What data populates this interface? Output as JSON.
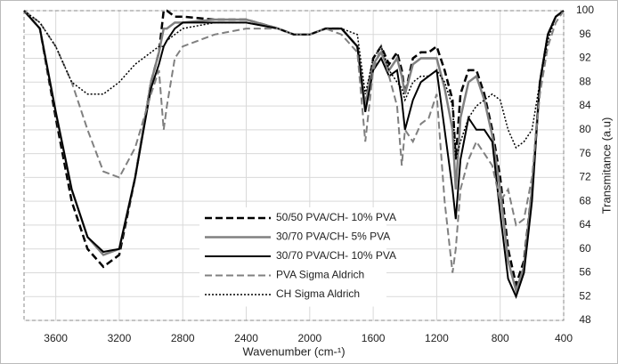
{
  "chart_data": {
    "type": "line",
    "x_label": "Wavenumber (cm-¹)",
    "y_label": "Transmitance (a.u)",
    "xlim": [
      3800,
      400
    ],
    "xticks": [
      3600,
      3200,
      2800,
      2400,
      2000,
      1600,
      1200,
      800,
      400
    ],
    "ylim": [
      48,
      100
    ],
    "yticks": [
      48,
      52,
      56,
      60,
      64,
      68,
      72,
      76,
      80,
      84,
      88,
      92,
      96,
      100
    ],
    "grid": true,
    "legend": "center-left",
    "x": [
      3800,
      3700,
      3600,
      3500,
      3400,
      3300,
      3200,
      3100,
      3000,
      2950,
      2920,
      2900,
      2850,
      2800,
      2600,
      2400,
      2200,
      2100,
      2000,
      1900,
      1800,
      1700,
      1650,
      1600,
      1550,
      1500,
      1450,
      1420,
      1400,
      1350,
      1300,
      1250,
      1200,
      1150,
      1100,
      1080,
      1050,
      1000,
      950,
      900,
      850,
      800,
      750,
      700,
      650,
      600,
      550,
      500,
      450,
      400
    ],
    "series": [
      {
        "name": "50/50 PVA/CH- 10% PVA",
        "color": "#000000",
        "dash": "dashed",
        "width": 2.5,
        "values": [
          100,
          97,
          82,
          68,
          60,
          57,
          59,
          72,
          88,
          93,
          100,
          100,
          99,
          99,
          98.5,
          98.5,
          97,
          96,
          96,
          97,
          97,
          94,
          84,
          92,
          94,
          91,
          93,
          90,
          86,
          92,
          93,
          93,
          94,
          90,
          85,
          75,
          86,
          90,
          90,
          86,
          80,
          72,
          60,
          54,
          58,
          70,
          88,
          96,
          99,
          100
        ]
      },
      {
        "name": "30/70 PVA/CH- 5% PVA",
        "color": "#808080",
        "dash": "solid",
        "width": 2.5,
        "values": [
          100,
          97,
          83,
          70,
          62,
          59,
          60,
          72,
          88,
          93,
          97,
          97,
          98,
          98,
          98.5,
          98.5,
          97,
          96,
          96,
          97,
          97,
          94,
          84,
          91,
          93,
          90,
          92,
          89,
          86,
          91,
          92,
          92,
          92,
          87,
          80,
          70,
          82,
          88,
          89,
          85,
          79,
          70,
          58,
          53,
          57,
          70,
          88,
          96,
          99,
          100
        ]
      },
      {
        "name": "30/70 PVA/CH- 10% PVA",
        "color": "#000000",
        "dash": "solid",
        "width": 2,
        "values": [
          100,
          97,
          83,
          70,
          62,
          59.5,
          60,
          72,
          87,
          91,
          94,
          95,
          97,
          98,
          98,
          98,
          97,
          96,
          96,
          97,
          97,
          94,
          83,
          90,
          92,
          89,
          90,
          85,
          80,
          85,
          88,
          89,
          90,
          80,
          70,
          65,
          75,
          82,
          80,
          80,
          78,
          66,
          55,
          52,
          56,
          68,
          88,
          96,
          99,
          100
        ]
      },
      {
        "name": "PVA  Sigma Aldrich",
        "color": "#808080",
        "dash": "dashed",
        "width": 2,
        "values": [
          100,
          98,
          94,
          88,
          80,
          73,
          72,
          77,
          86,
          90,
          80,
          84,
          92,
          94,
          96,
          97,
          97,
          96,
          96,
          97,
          96,
          93,
          78,
          90,
          94,
          89,
          84,
          74,
          80,
          78,
          81,
          82,
          86,
          68,
          56,
          60,
          70,
          75,
          78,
          76,
          74,
          68,
          70,
          64,
          65,
          72,
          86,
          94,
          98,
          100
        ]
      },
      {
        "name": "CH Sigma  Aldrich",
        "color": "#000000",
        "dash": "dotted",
        "width": 1.5,
        "values": [
          100,
          98,
          94,
          88,
          86,
          86,
          88,
          91,
          93,
          94,
          94,
          95,
          96,
          97,
          98,
          98,
          97,
          96,
          96,
          97,
          97,
          96,
          86,
          92,
          94,
          90,
          88,
          87,
          85,
          88,
          89,
          89,
          90,
          88,
          84,
          75,
          78,
          82,
          84,
          85,
          86,
          85,
          80,
          77,
          78,
          80,
          88,
          95,
          99,
          100
        ]
      }
    ]
  }
}
